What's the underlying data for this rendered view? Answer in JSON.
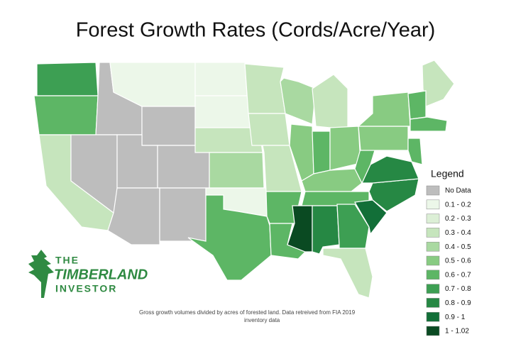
{
  "title": "Forest Growth Rates (Cords/Acre/Year)",
  "legend": {
    "title": "Legend",
    "items": [
      {
        "label": "No Data",
        "color": "#bdbdbd"
      },
      {
        "label": "0.1 - 0.2",
        "color": "#ecf7e9"
      },
      {
        "label": "0.2 - 0.3",
        "color": "#dcefd6"
      },
      {
        "label": "0.3 - 0.4",
        "color": "#c6e5bd"
      },
      {
        "label": "0.4 - 0.5",
        "color": "#a9d9a1"
      },
      {
        "label": "0.5 - 0.6",
        "color": "#88cb82"
      },
      {
        "label": "0.6 - 0.7",
        "color": "#5db665"
      },
      {
        "label": "0.7 - 0.8",
        "color": "#3d9f53"
      },
      {
        "label": "0.8 - 0.9",
        "color": "#268844"
      },
      {
        "label": "0.9 - 1",
        "color": "#126f38"
      },
      {
        "label": "1 - 1.02",
        "color": "#0a4a22"
      }
    ]
  },
  "regions": [
    7,
    6,
    3,
    0,
    0,
    1,
    0,
    0,
    0,
    0,
    0,
    1,
    1,
    3,
    4,
    1,
    6,
    3,
    3,
    3,
    6,
    6,
    4,
    3,
    5,
    6,
    5,
    5,
    6,
    10,
    8,
    7,
    3,
    9,
    8,
    8,
    6,
    5,
    5,
    3,
    6,
    6,
    6
  ],
  "logo": {
    "line1": "THE",
    "line2": "TIMBERLAND",
    "line3": "INVESTOR"
  },
  "footnote": {
    "line1": "Gross growth volumes divided by acres of forested land. Data retreived from FIA 2019",
    "line2": "inventory data"
  }
}
